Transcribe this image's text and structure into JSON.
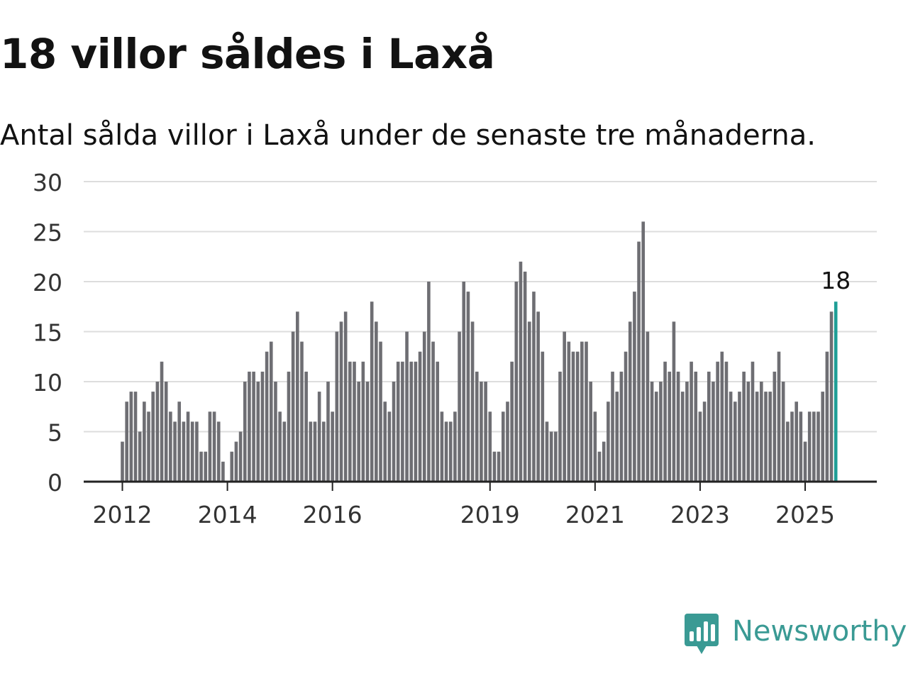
{
  "title": "18 villor såldes i Laxå",
  "subtitle": "Antal sålda villor i Laxå under de senaste tre månaderna.",
  "colors": {
    "bar": "#6e6e73",
    "highlight": "#1f9e96",
    "grid": "#dddddd",
    "axis": "#222222",
    "brand": "#3a9a94"
  },
  "brand": {
    "name": "Newsworthy",
    "icon": "bar-chart-speech-bubble-icon"
  },
  "chart_data": {
    "type": "bar",
    "start": "2012-01",
    "ylim": [
      0,
      30
    ],
    "yticks": [
      0,
      5,
      10,
      15,
      20,
      25,
      30
    ],
    "xticks": [
      {
        "label": "2012",
        "index": 0
      },
      {
        "label": "2014",
        "index": 24
      },
      {
        "label": "2016",
        "index": 48
      },
      {
        "label": "2019",
        "index": 84
      },
      {
        "label": "2021",
        "index": 108
      },
      {
        "label": "2023",
        "index": 132
      },
      {
        "label": "2025",
        "index": 156
      }
    ],
    "values": [
      4,
      8,
      9,
      9,
      5,
      8,
      7,
      9,
      10,
      12,
      10,
      7,
      6,
      8,
      6,
      7,
      6,
      6,
      3,
      3,
      7,
      7,
      6,
      2,
      0,
      3,
      4,
      5,
      10,
      11,
      11,
      10,
      11,
      13,
      14,
      10,
      7,
      6,
      11,
      15,
      17,
      14,
      11,
      6,
      6,
      9,
      6,
      10,
      7,
      15,
      16,
      17,
      12,
      12,
      10,
      12,
      10,
      18,
      16,
      14,
      8,
      7,
      10,
      12,
      12,
      15,
      12,
      12,
      13,
      15,
      20,
      14,
      12,
      7,
      6,
      6,
      7,
      15,
      20,
      19,
      16,
      11,
      10,
      10,
      7,
      3,
      3,
      7,
      8,
      12,
      20,
      22,
      21,
      16,
      19,
      17,
      13,
      6,
      5,
      5,
      11,
      15,
      14,
      13,
      13,
      14,
      14,
      10,
      7,
      3,
      4,
      8,
      11,
      9,
      11,
      13,
      16,
      19,
      24,
      26,
      15,
      10,
      9,
      10,
      12,
      11,
      16,
      11,
      9,
      10,
      12,
      11,
      7,
      8,
      11,
      10,
      12,
      13,
      12,
      9,
      8,
      9,
      11,
      10,
      12,
      9,
      10,
      9,
      9,
      11,
      13,
      10,
      6,
      7,
      8,
      7,
      4,
      7,
      7,
      7,
      9,
      13,
      17,
      18
    ],
    "highlight_index": 163,
    "highlight_label": "18"
  }
}
